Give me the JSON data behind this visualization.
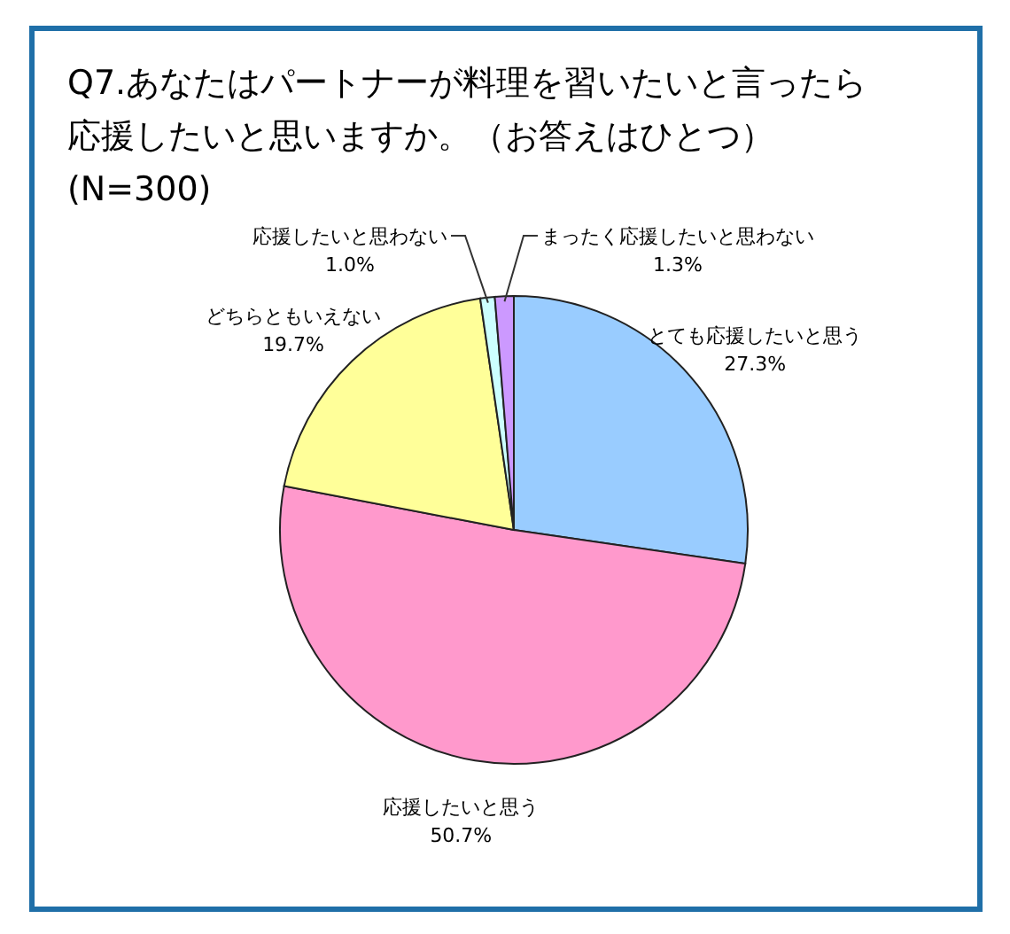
{
  "chart_data": {
    "type": "pie",
    "title": "Q7.あなたはパートナーが料理を習いたいと言ったら応援したいと思いますか。（お答えはひとつ）(N=300)",
    "categories": [
      "とても応援したいと思う",
      "応援したいと思う",
      "どちらともいえない",
      "応援したいと思わない",
      "まったく応援したいと思わない"
    ],
    "values": [
      27.3,
      50.7,
      19.7,
      1.0,
      1.3
    ],
    "value_labels": [
      "27.3%",
      "50.7%",
      "19.7%",
      "1.0%",
      "1.3%"
    ],
    "colors": [
      "#99ccff",
      "#ff99cc",
      "#ffff99",
      "#ccffff",
      "#cc99ff"
    ]
  }
}
